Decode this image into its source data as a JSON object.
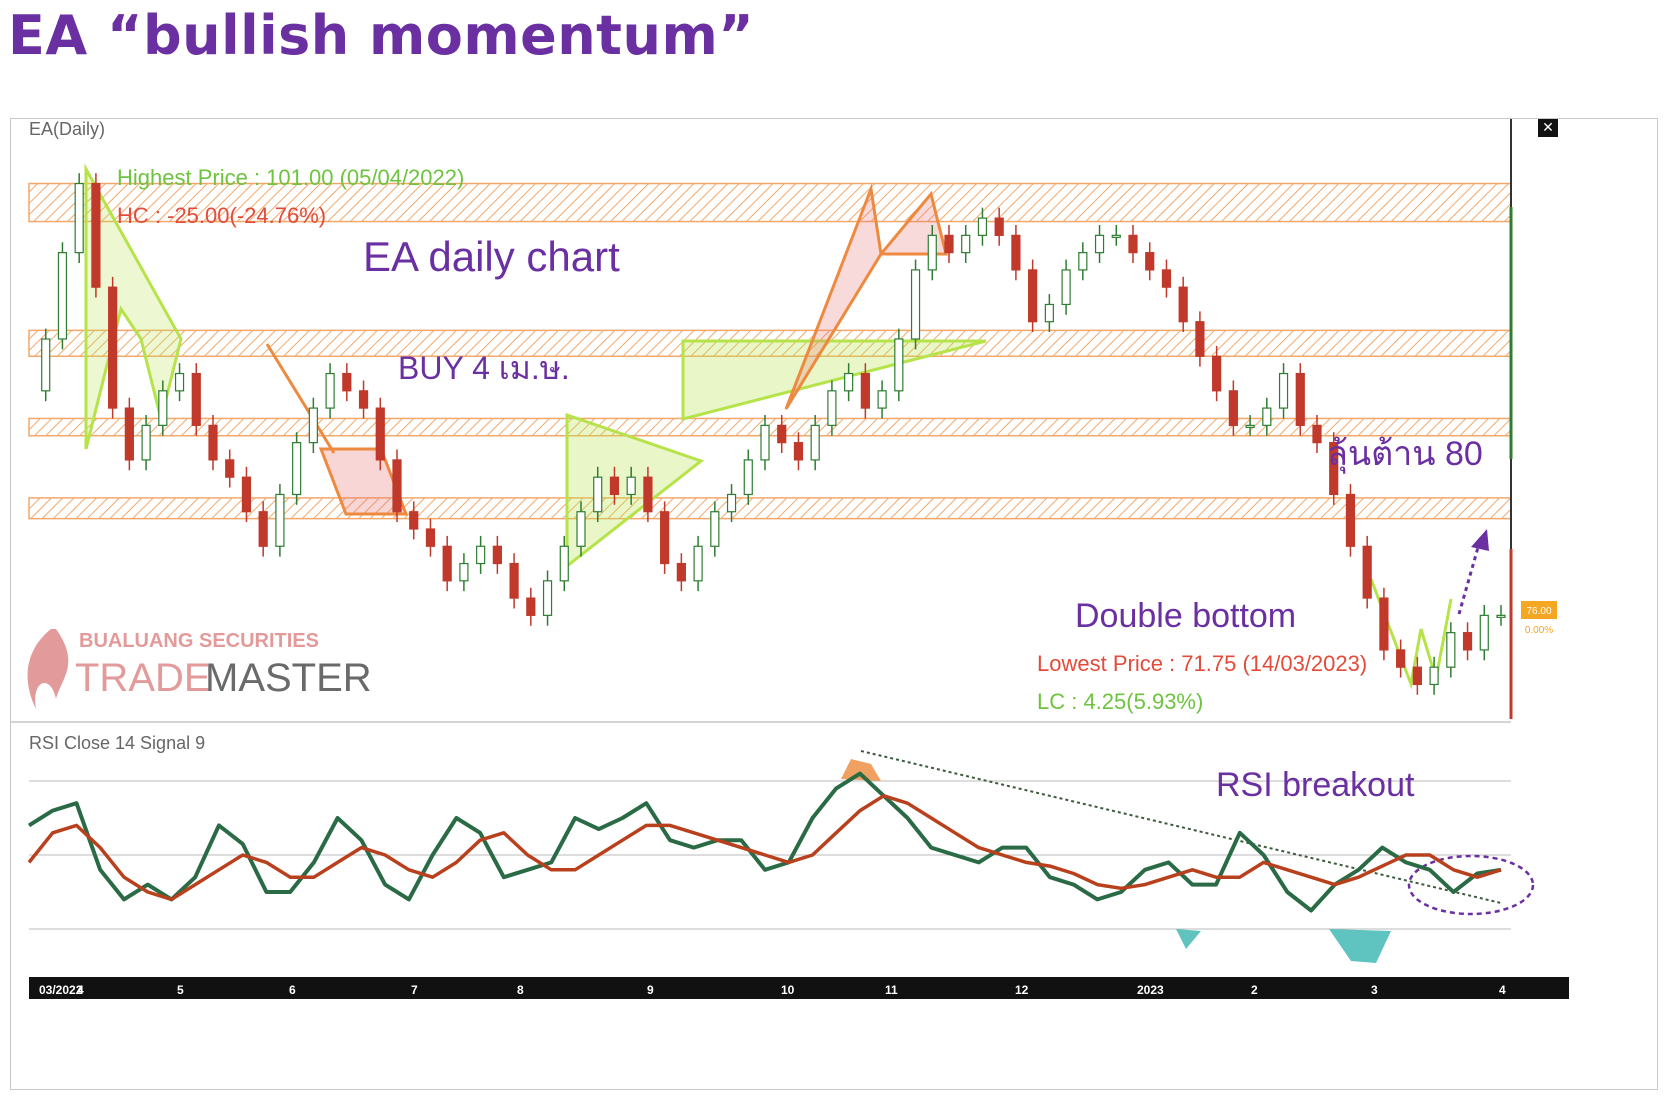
{
  "page_title": "EA “bullish momentum”",
  "chart_data": [
    {
      "type": "candlestick",
      "title": "EA(Daily)",
      "annotations": {
        "highest_price": "Highest Price : 101.00 (05/04/2022)",
        "hc": "HC : -25.00(-24.76%)",
        "lowest_price": "Lowest Price : 71.75 (14/03/2023)",
        "lc": "LC : 4.25(5.93%)",
        "chart_label": "EA daily chart",
        "buy_label": "BUY 4 เม.ษ.",
        "resist_label": "ลุ้นต้าน 80",
        "pattern_label": "Double bottom",
        "last_price": "76.00",
        "last_change": "0.00%"
      },
      "zones": [
        {
          "top": 101.0,
          "bottom": 98.8
        },
        {
          "top": 92.5,
          "bottom": 91.0
        },
        {
          "top": 87.4,
          "bottom": 86.4
        },
        {
          "top": 82.8,
          "bottom": 81.6
        }
      ],
      "close_series": [
        89,
        92,
        97,
        101,
        95,
        88,
        85,
        87,
        89,
        90,
        87,
        85,
        84,
        82,
        80,
        83,
        86,
        88,
        90,
        89,
        88,
        85,
        82,
        81,
        80,
        78,
        79,
        80,
        79,
        77,
        76,
        78,
        80,
        82,
        84,
        83,
        84,
        82,
        79,
        78,
        80,
        82,
        83,
        85,
        87,
        86,
        85,
        87,
        89,
        90,
        88,
        89,
        92,
        96,
        98,
        97,
        98,
        99,
        98,
        96,
        93,
        94,
        96,
        97,
        98,
        98,
        97,
        96,
        95,
        93,
        91,
        89,
        87,
        87,
        88,
        90,
        87,
        86,
        83,
        80,
        77,
        74,
        73,
        72,
        73,
        75,
        74,
        76,
        76
      ],
      "x_ticks": [
        "03/2022",
        "4",
        "5",
        "6",
        "7",
        "8",
        "9",
        "10",
        "11",
        "12",
        "2023",
        "2",
        "3",
        "4"
      ],
      "logo": {
        "line1": "BUALUANG SECURITIES",
        "line2a": "TRADE",
        "line2b": "MASTER"
      },
      "colors": {
        "up": "#2e7d32",
        "down": "#c0392b",
        "zone": "#f3a86b",
        "pattern_green": "#b6e34a",
        "pattern_orange": "#ee8a40",
        "title": "#6a2fa0"
      }
    },
    {
      "type": "line",
      "title": "RSI Close 14 Signal 9",
      "annotation": "RSI breakout",
      "series": [
        {
          "name": "RSI",
          "values": [
            58,
            62,
            64,
            46,
            38,
            42,
            38,
            44,
            58,
            53,
            40,
            40,
            48,
            60,
            54,
            42,
            38,
            50,
            60,
            56,
            44,
            46,
            48,
            60,
            57,
            60,
            64,
            54,
            52,
            54,
            54,
            46,
            48,
            60,
            68,
            72,
            66,
            60,
            52,
            50,
            48,
            52,
            52,
            44,
            42,
            38,
            40,
            46,
            48,
            42,
            42,
            56,
            50,
            40,
            35,
            42,
            46,
            52,
            48,
            46,
            40,
            45,
            46
          ]
        },
        {
          "name": "Signal",
          "values": [
            48,
            56,
            58,
            52,
            44,
            40,
            38,
            42,
            46,
            50,
            48,
            44,
            44,
            48,
            52,
            50,
            46,
            44,
            48,
            54,
            56,
            50,
            46,
            46,
            50,
            54,
            58,
            58,
            56,
            54,
            52,
            50,
            48,
            50,
            56,
            62,
            66,
            64,
            60,
            56,
            52,
            50,
            48,
            47,
            45,
            42,
            41,
            42,
            44,
            46,
            44,
            44,
            48,
            46,
            44,
            42,
            44,
            47,
            50,
            50,
            46,
            44,
            46
          ]
        }
      ],
      "colors": {
        "rsi": "#2a6b46",
        "signal": "#b8401c"
      }
    }
  ]
}
